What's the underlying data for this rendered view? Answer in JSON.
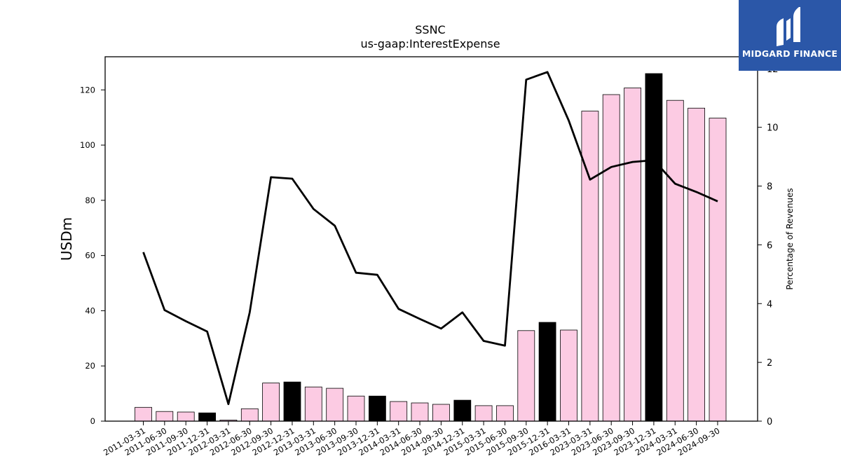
{
  "chart_data": {
    "type": "bar",
    "title": "SSNC",
    "subtitle": "us-gaap:InterestExpense",
    "ylabel": "USDm",
    "y2label": "Percentage of Revenues",
    "ylim": [
      0,
      132
    ],
    "y2lim": [
      0,
      12.4
    ],
    "yticks": [
      0,
      20,
      40,
      60,
      80,
      100,
      120
    ],
    "y2ticks": [
      0,
      2,
      4,
      6,
      8,
      10,
      12
    ],
    "grid": false,
    "categories": [
      "2011-03-31",
      "2011-06-30",
      "2011-09-30",
      "2011-12-31",
      "2012-03-31",
      "2012-06-30",
      "2012-09-30",
      "2012-12-31",
      "2013-03-31",
      "2013-06-30",
      "2013-09-30",
      "2013-12-31",
      "2014-03-31",
      "2014-06-30",
      "2014-09-30",
      "2014-12-31",
      "2015-03-31",
      "2015-06-30",
      "2015-09-30",
      "2015-12-31",
      "2016-03-31",
      "2023-03-31",
      "2023-06-30",
      "2023-09-30",
      "2023-12-31",
      "2024-03-31",
      "2024-06-30",
      "2024-09-30"
    ],
    "series": [
      {
        "kind": "bar",
        "values": [
          5.0,
          3.5,
          3.3,
          3.0,
          0.4,
          4.5,
          13.8,
          14.2,
          12.4,
          11.9,
          9.1,
          9.1,
          7.1,
          6.6,
          6.1,
          7.6,
          5.6,
          5.6,
          32.8,
          35.8,
          33.0,
          112.3,
          118.3,
          120.7,
          125.9,
          116.2,
          113.4,
          109.8
        ],
        "highlight": [
          false,
          false,
          false,
          true,
          false,
          false,
          false,
          true,
          false,
          false,
          false,
          true,
          false,
          false,
          false,
          true,
          false,
          false,
          false,
          true,
          false,
          false,
          false,
          false,
          true,
          false,
          false,
          false
        ],
        "color": "#fccbe3",
        "highlight_color": "#000000"
      },
      {
        "kind": "line",
        "axis": "right",
        "values": [
          5.75,
          3.78,
          3.4,
          3.05,
          0.58,
          3.7,
          8.3,
          8.25,
          7.22,
          6.65,
          5.05,
          4.98,
          3.82,
          3.48,
          3.15,
          3.7,
          2.73,
          2.57,
          11.62,
          11.88,
          10.23,
          8.22,
          8.65,
          8.82,
          8.88,
          8.08,
          7.8,
          7.48
        ],
        "color": "#000000"
      }
    ]
  },
  "logo": {
    "text": "MIDGARD FINANCE",
    "color": "#2b57a8"
  }
}
